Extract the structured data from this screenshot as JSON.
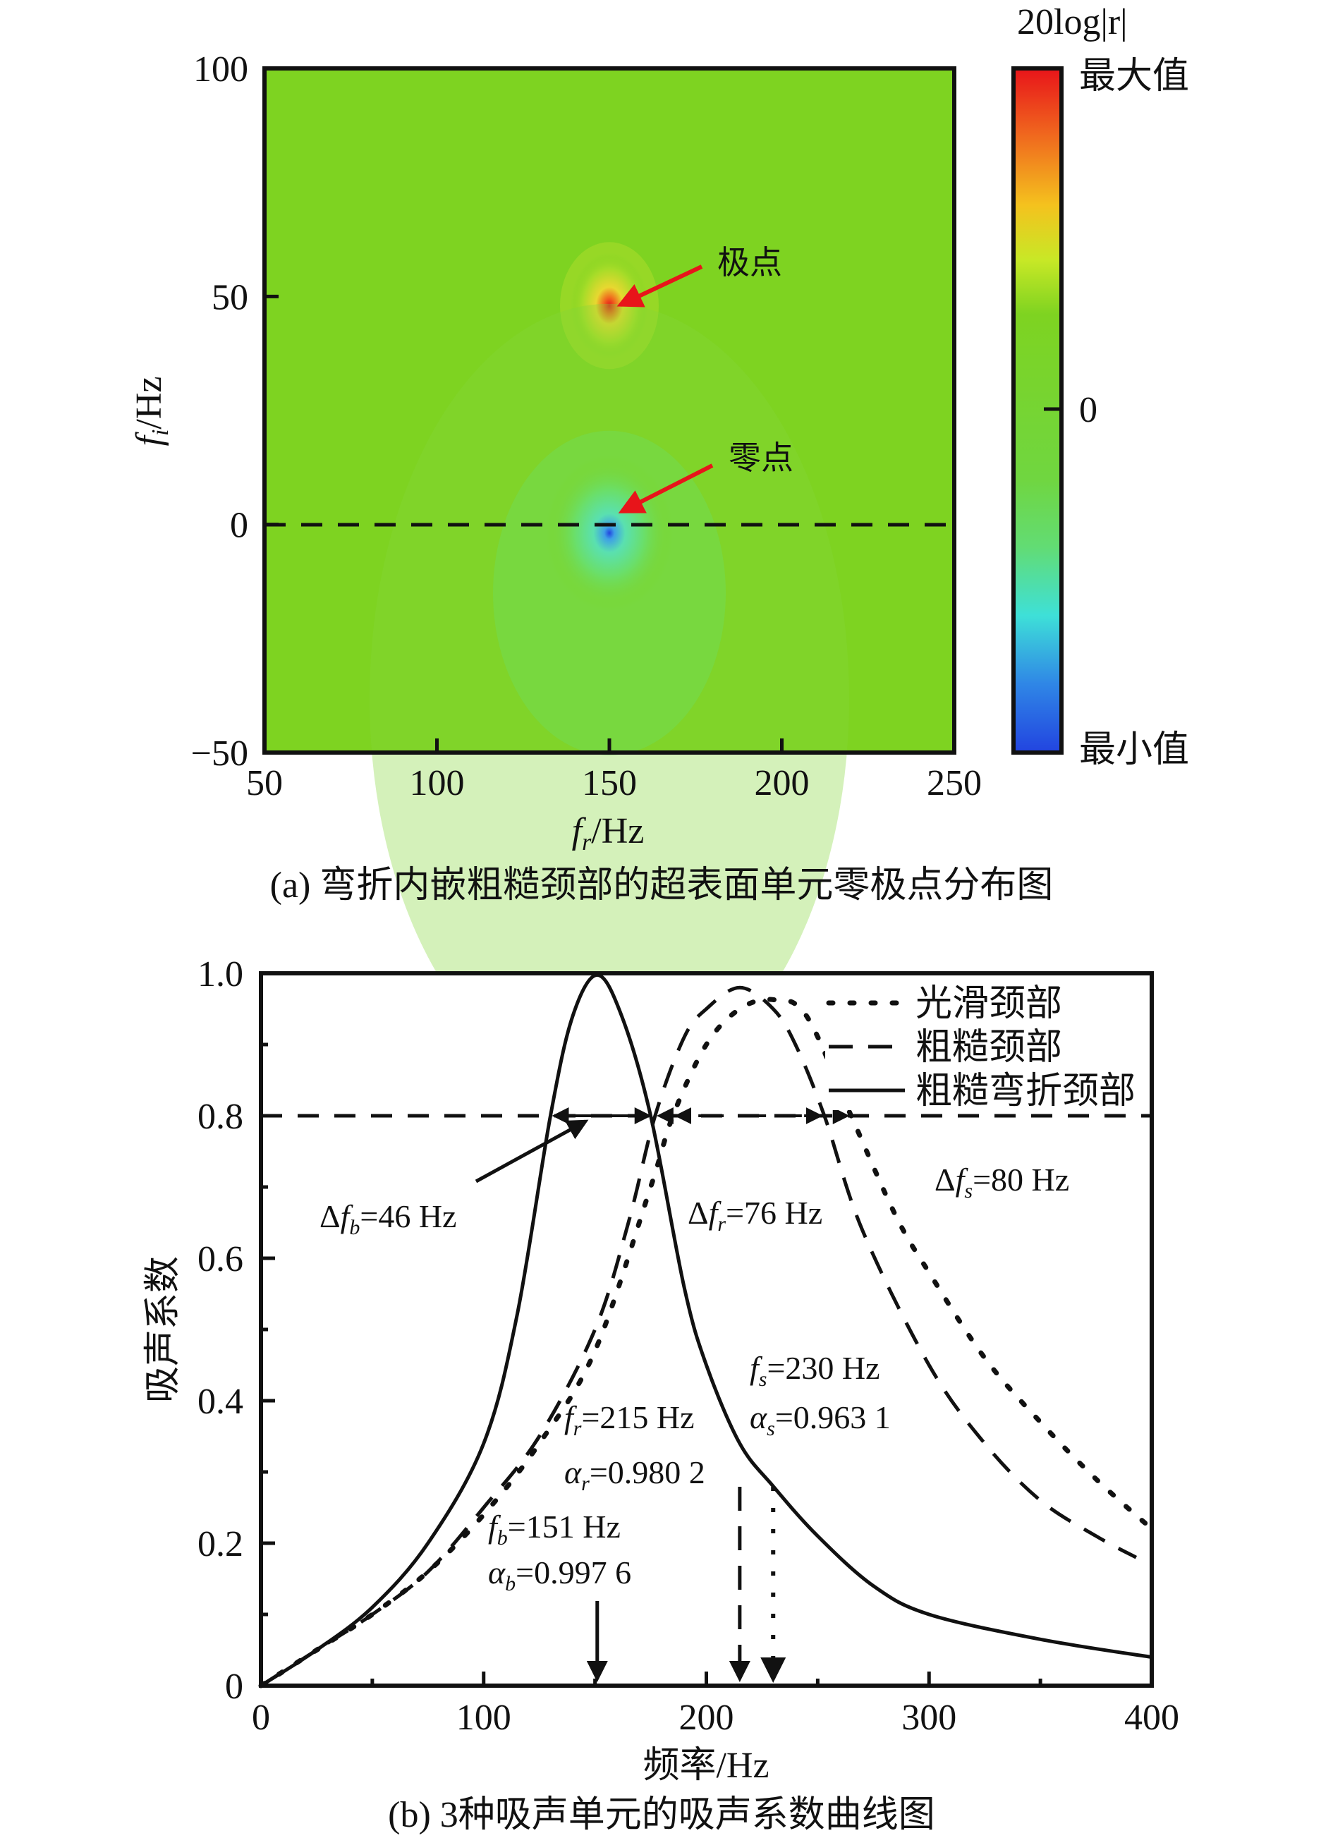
{
  "chart_data": [
    {
      "type": "heatmap",
      "caption": "(a) 弯折内嵌粗糙颈部的超表面单元零极点分布图",
      "xlabel": {
        "var": "f",
        "sub": "r",
        "unit": "/Hz"
      },
      "ylabel": {
        "var": "f",
        "sub": "i",
        "unit": "/Hz"
      },
      "xlim": [
        50,
        250
      ],
      "ylim": [
        -50,
        100
      ],
      "xticks": [
        "50",
        "100",
        "150",
        "200",
        "250"
      ],
      "yticks": [
        "−50",
        "0",
        "50",
        "100"
      ],
      "reference_line_y": 0,
      "colorbar": {
        "title": "20log|r|",
        "max_label": "最大值",
        "mid_label": "0",
        "min_label": "最小值",
        "colors": [
          "#e8141a",
          "#f06a1e",
          "#f4c21e",
          "#c8e826",
          "#7ed321",
          "#62dc74",
          "#3ee0d8",
          "#2f86e6",
          "#2244e0"
        ]
      },
      "points": [
        {
          "label": "极点",
          "x": 150,
          "y": 48,
          "kind": "pole"
        },
        {
          "label": "零点",
          "x": 150,
          "y": 2,
          "kind": "zero"
        }
      ],
      "background_color": "#7ed321",
      "arrow_color": "#e8141a"
    },
    {
      "type": "line",
      "caption": "(b) 3种吸声单元的吸声系数曲线图",
      "xlabel": "频率/Hz",
      "ylabel": "吸声系数",
      "xlim": [
        0,
        400
      ],
      "ylim": [
        0,
        1.0
      ],
      "xticks": [
        "0",
        "100",
        "200",
        "300",
        "400"
      ],
      "yticks": [
        "0",
        "0.2",
        "0.4",
        "0.6",
        "0.8",
        "1.0"
      ],
      "reference_line_y": 0.8,
      "legend_position": "top-right",
      "series": [
        {
          "name": "光滑颈部",
          "style": "dotted",
          "x": [
            0,
            25,
            50,
            75,
            100,
            125,
            150,
            175,
            185,
            200,
            215,
            230,
            245,
            265,
            285,
            300,
            325,
            350,
            375,
            400
          ],
          "y": [
            0,
            0.05,
            0.1,
            0.16,
            0.24,
            0.34,
            0.47,
            0.7,
            0.8,
            0.9,
            0.95,
            0.963,
            0.94,
            0.8,
            0.66,
            0.58,
            0.46,
            0.37,
            0.29,
            0.22
          ]
        },
        {
          "name": "粗糙颈部",
          "style": "dashed",
          "x": [
            0,
            25,
            50,
            75,
            100,
            125,
            150,
            165,
            177,
            190,
            200,
            215,
            230,
            240,
            253,
            270,
            300,
            325,
            350,
            375,
            393
          ],
          "y": [
            0,
            0.05,
            0.1,
            0.16,
            0.25,
            0.35,
            0.5,
            0.65,
            0.8,
            0.91,
            0.95,
            0.98,
            0.95,
            0.9,
            0.8,
            0.64,
            0.45,
            0.34,
            0.26,
            0.21,
            0.18
          ]
        },
        {
          "name": "粗糙弯折颈部",
          "style": "solid",
          "x": [
            0,
            25,
            50,
            75,
            100,
            115,
            130,
            140,
            151,
            162,
            175,
            190,
            200,
            215,
            230,
            250,
            275,
            300,
            350,
            400
          ],
          "y": [
            0,
            0.05,
            0.11,
            0.2,
            0.34,
            0.52,
            0.8,
            0.94,
            0.9976,
            0.94,
            0.8,
            0.56,
            0.45,
            0.34,
            0.28,
            0.21,
            0.14,
            0.1,
            0.065,
            0.04
          ]
        }
      ],
      "bandwidths": [
        {
          "delta": "Δ",
          "var": "f",
          "sub": "b",
          "value": "=46 Hz",
          "from": 130,
          "to": 176,
          "style": "solid"
        },
        {
          "delta": "Δ",
          "var": "f",
          "sub": "r",
          "value": "=76 Hz",
          "from": 177,
          "to": 253,
          "style": "dashed"
        },
        {
          "delta": "Δ",
          "var": "f",
          "sub": "s",
          "value": "=80 Hz",
          "from": 185,
          "to": 265,
          "style": "dotted"
        }
      ],
      "peaks": [
        {
          "var": "f",
          "sub": "b",
          "freq": "=151 Hz",
          "avar": "α",
          "alpha": "=0.997 6",
          "x": 151,
          "style": "solid"
        },
        {
          "var": "f",
          "sub": "r",
          "freq": "=215 Hz",
          "avar": "α",
          "alpha": "=0.980 2",
          "x": 215,
          "style": "dashed"
        },
        {
          "var": "f",
          "sub": "s",
          "freq": "=230 Hz",
          "avar": "α",
          "alpha": "=0.963 1",
          "x": 230,
          "style": "dotted"
        }
      ]
    }
  ]
}
